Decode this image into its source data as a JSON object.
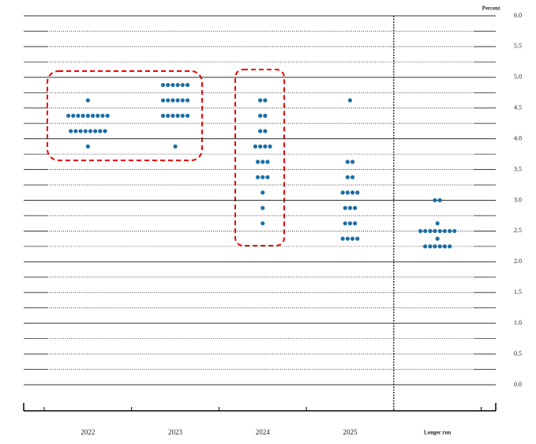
{
  "chart_data": {
    "type": "dot",
    "y_label": "Percent",
    "categories": [
      "2022",
      "2023",
      "2024",
      "2025",
      "Longer run"
    ],
    "values": [
      [
        4.625,
        4.375,
        4.375,
        4.375,
        4.375,
        4.375,
        4.375,
        4.375,
        4.375,
        4.375,
        4.125,
        4.125,
        4.125,
        4.125,
        4.125,
        4.125,
        4.125,
        4.125,
        3.875
      ],
      [
        4.875,
        4.875,
        4.875,
        4.875,
        4.875,
        4.875,
        4.625,
        4.625,
        4.625,
        4.625,
        4.625,
        4.625,
        4.375,
        4.375,
        4.375,
        4.375,
        4.375,
        4.375,
        3.875
      ],
      [
        4.625,
        4.625,
        4.375,
        4.375,
        4.125,
        4.125,
        3.875,
        3.875,
        3.875,
        3.875,
        3.625,
        3.625,
        3.625,
        3.375,
        3.375,
        3.375,
        3.125,
        2.875,
        2.625
      ],
      [
        4.625,
        3.625,
        3.625,
        3.375,
        3.375,
        3.125,
        3.125,
        3.125,
        3.125,
        2.875,
        2.875,
        2.875,
        2.625,
        2.625,
        2.625,
        2.375,
        2.375,
        2.375,
        2.375
      ],
      [
        3.0,
        3.0,
        2.625,
        2.5,
        2.5,
        2.5,
        2.5,
        2.5,
        2.5,
        2.5,
        2.5,
        2.375,
        2.25,
        2.25,
        2.25,
        2.25,
        2.25,
        2.25
      ]
    ],
    "color": "#1b6fa6",
    "ylim": [
      0,
      6
    ],
    "yticks": [
      {
        "value": 0,
        "label": "0.0"
      },
      {
        "value": 0.5,
        "label": "0.5"
      },
      {
        "value": 1,
        "label": "1.0"
      },
      {
        "value": 1.5,
        "label": "1.5"
      },
      {
        "value": 2,
        "label": "2.0"
      },
      {
        "value": 2.5,
        "label": "2.5"
      },
      {
        "value": 3,
        "label": "3.0"
      },
      {
        "value": 3.5,
        "label": "3.5"
      },
      {
        "value": 4,
        "label": "4.0"
      },
      {
        "value": 4.5,
        "label": "4.5"
      },
      {
        "value": 5,
        "label": "5.0"
      },
      {
        "value": 5.5,
        "label": "5.5"
      },
      {
        "value": 6,
        "label": "6.0"
      }
    ]
  }
}
